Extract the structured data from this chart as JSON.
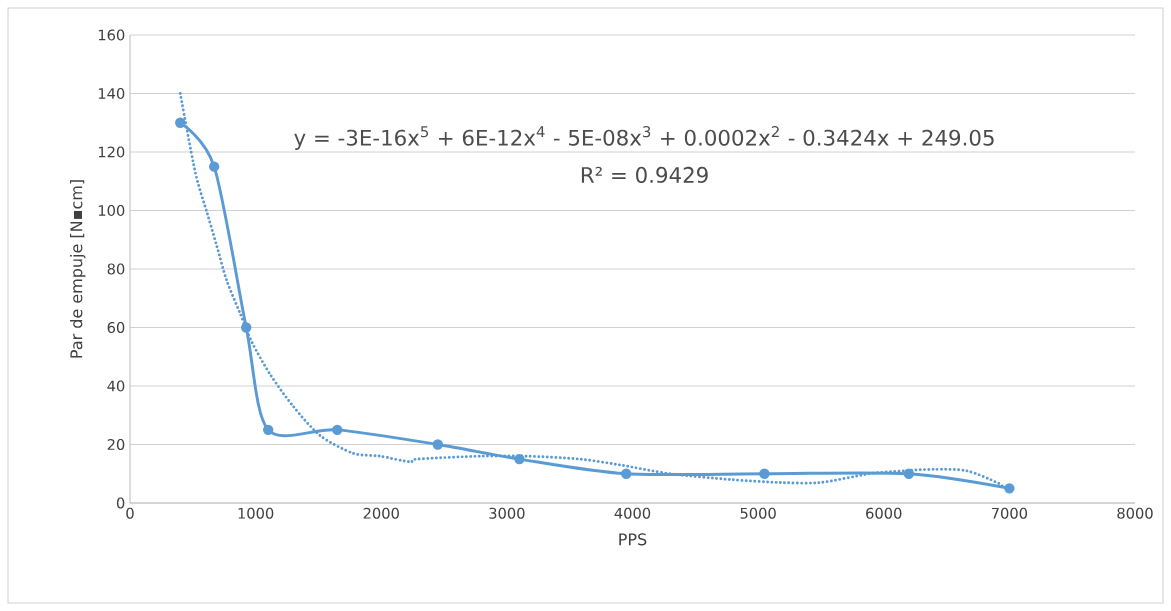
{
  "chart_data": {
    "type": "line",
    "xlabel": "PPS",
    "ylabel": "Par de empuje [N▪cm]",
    "annotations": [
      "y = -3E-16x$^{5}$ + 6E-12x$^{4}$ - 5E-08x$^{3}$ + 0.0002x$^{2}$ - 0.3424x + 249.05",
      "R² = 0.9429"
    ],
    "series": [
      {
        "color": "#5b9bd5",
        "marker": "circle",
        "line_style": "solid",
        "x": [
          400,
          670,
          925,
          1100,
          1650,
          2450,
          3100,
          3950,
          5050,
          6200,
          7000
        ],
        "values": [
          130,
          115,
          60,
          25,
          25,
          20,
          15,
          10,
          10,
          10,
          5
        ]
      },
      {
        "color": "#5b9bd5",
        "marker": "none",
        "line_style": "dotted",
        "x": [
          400,
          520,
          615,
          690,
          770,
          875,
          970,
          1115,
          1300,
          1515,
          1775,
          1990,
          2230,
          2285,
          2790,
          3160,
          3580,
          3900,
          4300,
          4780,
          5175,
          5495,
          5890,
          6160,
          6400,
          6660,
          6900,
          6960
        ],
        "values": [
          140,
          113,
          99,
          88,
          76,
          65,
          55,
          44,
          33,
          23,
          17,
          16,
          14,
          15,
          16,
          16,
          15,
          13,
          10,
          8,
          7,
          7,
          10,
          11,
          11.5,
          11,
          7,
          5
        ]
      }
    ],
    "xlim": [
      0,
      8000
    ],
    "ylim": [
      0,
      160
    ],
    "xticks": [
      0,
      1000,
      2000,
      3000,
      4000,
      5000,
      6000,
      7000,
      8000
    ],
    "yticks": [
      0,
      20,
      40,
      60,
      80,
      100,
      120,
      140,
      160
    ],
    "grid": "y"
  }
}
